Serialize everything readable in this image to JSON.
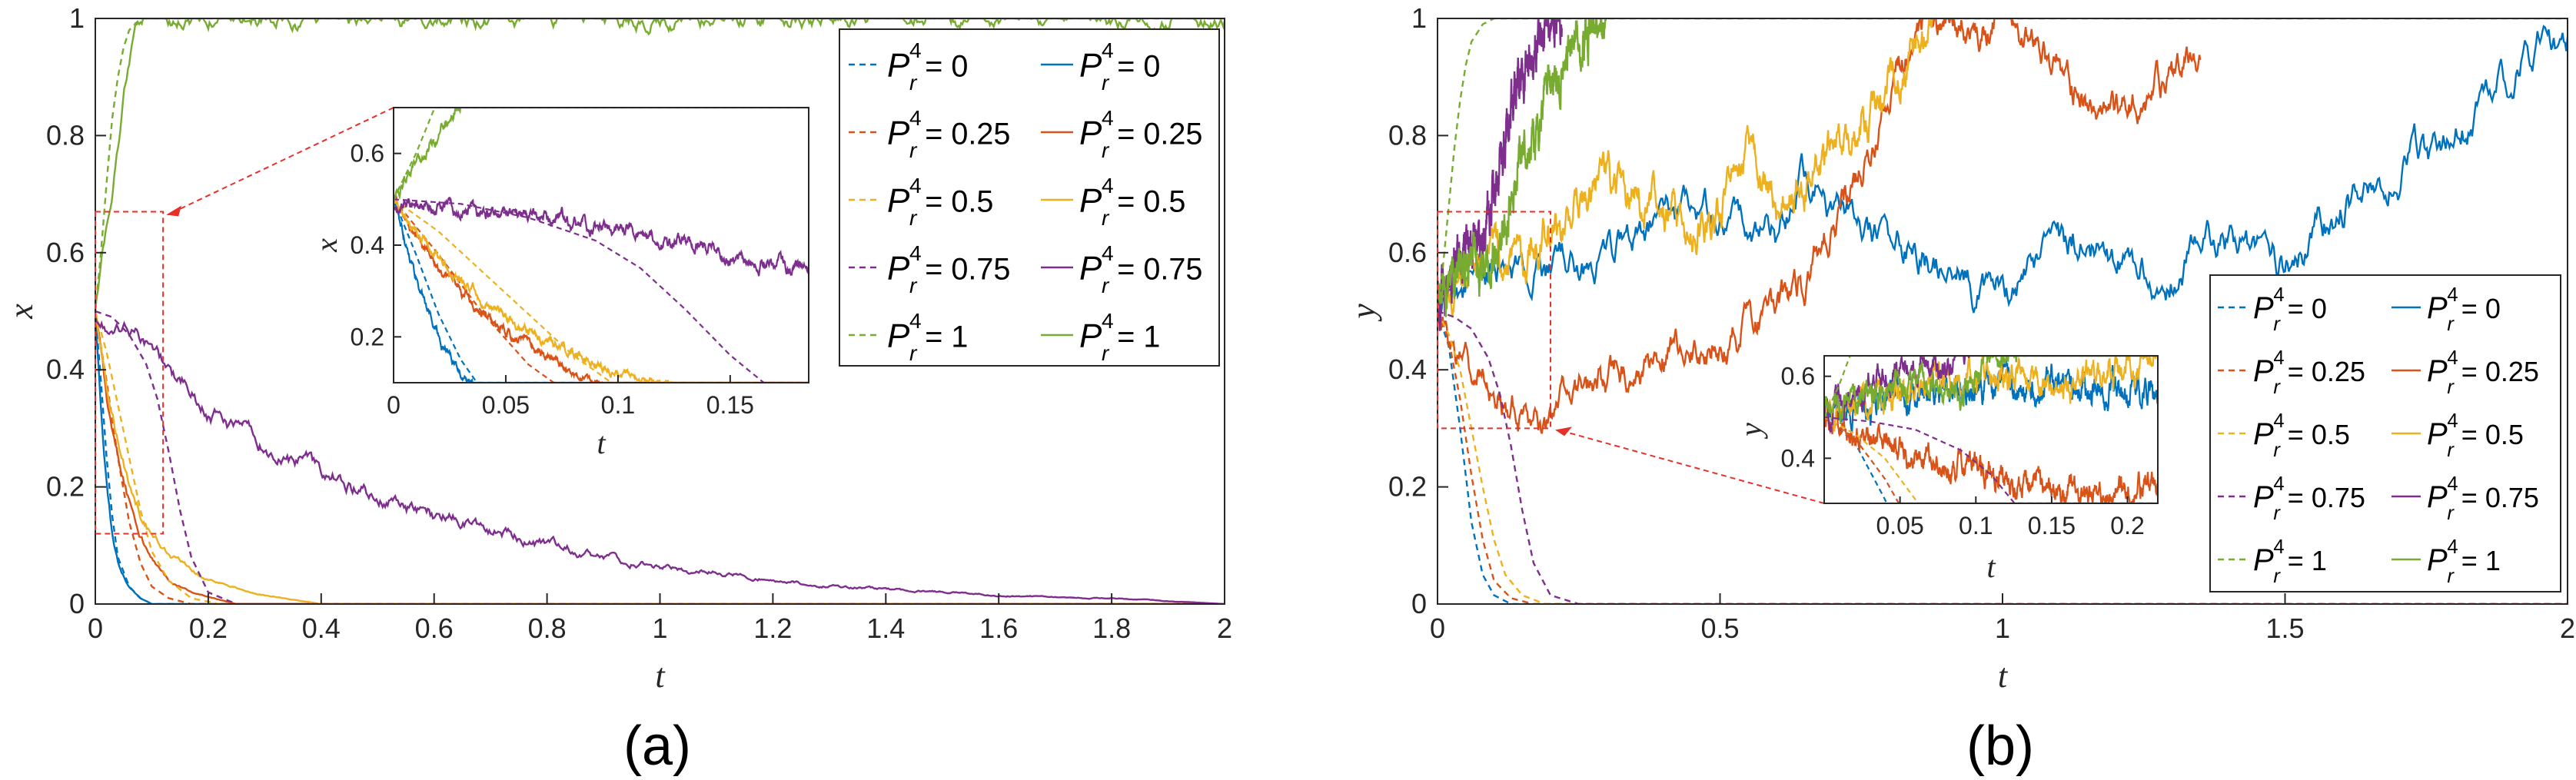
{
  "colors": {
    "pr0": "#0072BD",
    "pr025": "#D95319",
    "pr05": "#EDB120",
    "pr075": "#7E2F8E",
    "pr1": "#77AC30",
    "zoom_box": "#E8302A"
  },
  "legend_symbol": {
    "base": "P",
    "sup": "4",
    "sub": "r"
  },
  "panels": [
    {
      "label": "(a)",
      "chart_data": {
        "type": "line",
        "xlabel": "t",
        "ylabel": "x",
        "xlim": [
          0,
          2
        ],
        "ylim": [
          0,
          1
        ],
        "xticks": [
          "0",
          "0.2",
          "0.4",
          "0.6",
          "0.8",
          "1",
          "1.2",
          "1.4",
          "1.6",
          "1.8",
          "2"
        ],
        "yticks": [
          "0",
          "0.2",
          "0.4",
          "0.6",
          "0.8",
          "1"
        ],
        "legend_position": "top-right",
        "legend_entries": [
          "= 0",
          "= 0",
          "= 0.25",
          "= 0.25",
          "= 0.5",
          "= 0.5",
          "= 0.75",
          "= 0.75",
          "= 1",
          "= 1"
        ],
        "series": [
          {
            "p": 0,
            "style": "dashed",
            "t": [
              0,
              0.01,
              0.02,
              0.03,
              0.04,
              0.06,
              0.08,
              0.1,
              0.15,
              2
            ],
            "v": [
              0.5,
              0.38,
              0.25,
              0.15,
              0.08,
              0.03,
              0.01,
              0.0,
              0.0,
              0.0
            ]
          },
          {
            "p": 0,
            "style": "solid",
            "noise": 0.006,
            "t": [
              0,
              0.01,
              0.02,
              0.03,
              0.04,
              0.06,
              0.08,
              0.1,
              0.15,
              2
            ],
            "v": [
              0.5,
              0.33,
              0.2,
              0.12,
              0.07,
              0.03,
              0.01,
              0.0,
              0.0,
              0.0
            ]
          },
          {
            "p": 0.25,
            "style": "dashed",
            "t": [
              0,
              0.02,
              0.04,
              0.06,
              0.08,
              0.1,
              0.13,
              0.17,
              0.25,
              2
            ],
            "v": [
              0.5,
              0.38,
              0.25,
              0.14,
              0.07,
              0.03,
              0.01,
              0.0,
              0.0,
              0.0
            ]
          },
          {
            "p": 0.25,
            "style": "solid",
            "noise": 0.006,
            "t": [
              0,
              0.02,
              0.04,
              0.06,
              0.08,
              0.1,
              0.13,
              0.17,
              0.25,
              2
            ],
            "v": [
              0.5,
              0.35,
              0.25,
              0.18,
              0.12,
              0.08,
              0.04,
              0.02,
              0.0,
              0.0
            ]
          },
          {
            "p": 0.5,
            "style": "dashed",
            "t": [
              0,
              0.02,
              0.04,
              0.06,
              0.08,
              0.1,
              0.13,
              0.17,
              0.22,
              0.3,
              2
            ],
            "v": [
              0.5,
              0.43,
              0.34,
              0.25,
              0.16,
              0.09,
              0.04,
              0.01,
              0.0,
              0.0,
              0.0
            ]
          },
          {
            "p": 0.5,
            "style": "solid",
            "noise": 0.006,
            "t": [
              0,
              0.02,
              0.04,
              0.06,
              0.08,
              0.1,
              0.14,
              0.2,
              0.3,
              0.4,
              2
            ],
            "v": [
              0.5,
              0.37,
              0.28,
              0.21,
              0.16,
              0.12,
              0.08,
              0.04,
              0.015,
              0.0,
              0.0
            ]
          },
          {
            "p": 0.75,
            "style": "dashed",
            "t": [
              0,
              0.03,
              0.06,
              0.09,
              0.11,
              0.13,
              0.15,
              0.17,
              0.2,
              0.25,
              2
            ],
            "v": [
              0.5,
              0.49,
              0.46,
              0.41,
              0.35,
              0.26,
              0.16,
              0.08,
              0.02,
              0.0,
              0.0
            ]
          },
          {
            "p": 0.75,
            "style": "solid",
            "noise": 0.008,
            "t": [
              0,
              0.05,
              0.1,
              0.15,
              0.2,
              0.3,
              0.4,
              0.5,
              0.6,
              0.8,
              1.0,
              1.2,
              1.4,
              1.6,
              1.8,
              2.0
            ],
            "v": [
              0.49,
              0.47,
              0.44,
              0.38,
              0.33,
              0.27,
              0.23,
              0.18,
              0.15,
              0.1,
              0.065,
              0.04,
              0.025,
              0.015,
              0.01,
              0.0
            ]
          },
          {
            "p": 1,
            "style": "dashed",
            "t": [
              0,
              0.01,
              0.02,
              0.03,
              0.04,
              0.05,
              0.06,
              0.08,
              0.1,
              0.12,
              2
            ],
            "v": [
              0.5,
              0.6,
              0.72,
              0.83,
              0.9,
              0.95,
              0.98,
              1.0,
              1.0,
              1.0,
              1.0
            ]
          },
          {
            "p": 1,
            "style": "solid",
            "noise": 0.008,
            "t": [
              0,
              0.01,
              0.02,
              0.03,
              0.04,
              0.05,
              0.06,
              0.07,
              0.08,
              0.1,
              2
            ],
            "v": [
              0.5,
              0.58,
              0.64,
              0.71,
              0.78,
              0.86,
              0.93,
              0.98,
              1.0,
              1.0,
              1.0
            ]
          }
        ],
        "inset": {
          "xlabel": "t",
          "ylabel": "x",
          "xlim": [
            0,
            0.185
          ],
          "ylim": [
            0.1,
            0.7
          ],
          "xticks": [
            "0",
            "0.05",
            "0.1",
            "0.15"
          ],
          "yticks": [
            "0.2",
            "0.4",
            "0.6"
          ],
          "zoom_region": {
            "t": [
              0,
              0.12
            ],
            "v": [
              0.12,
              0.67
            ]
          }
        }
      }
    },
    {
      "label": "(b)",
      "chart_data": {
        "type": "line",
        "xlabel": "t",
        "ylabel": "y",
        "xlim": [
          0,
          2
        ],
        "ylim": [
          0,
          1
        ],
        "xticks": [
          "0",
          "0.5",
          "1",
          "1.5",
          "2"
        ],
        "yticks": [
          "0",
          "0.2",
          "0.4",
          "0.6",
          "0.8",
          "1"
        ],
        "legend_position": "bottom-right",
        "legend_entries": [
          "= 0",
          "= 0",
          "= 0.25",
          "= 0.25",
          "= 0.5",
          "= 0.5",
          "= 0.75",
          "= 0.75",
          "= 1",
          "= 1"
        ],
        "series": [
          {
            "p": 0,
            "style": "dashed",
            "t": [
              0,
              0.02,
              0.04,
              0.06,
              0.08,
              0.1,
              0.13,
              0.2,
              2
            ],
            "v": [
              0.5,
              0.44,
              0.3,
              0.14,
              0.05,
              0.015,
              0.0,
              0.0,
              0.0
            ]
          },
          {
            "p": 0,
            "style": "solid",
            "noise": 0.018,
            "t": [
              0,
              0.05,
              0.1,
              0.15,
              0.2,
              0.3,
              0.4,
              0.5,
              0.6,
              0.65,
              0.7,
              0.8,
              0.9,
              0.97,
              1.05,
              1.15,
              1.25,
              1.3,
              1.35,
              1.4,
              1.5,
              1.6,
              1.7,
              1.8,
              1.88,
              1.95,
              2.0
            ],
            "v": [
              0.5,
              0.54,
              0.57,
              0.58,
              0.56,
              0.6,
              0.64,
              0.67,
              0.62,
              0.72,
              0.67,
              0.62,
              0.58,
              0.52,
              0.56,
              0.63,
              0.58,
              0.56,
              0.6,
              0.62,
              0.58,
              0.68,
              0.74,
              0.8,
              0.88,
              0.96,
              0.98
            ]
          },
          {
            "p": 0.25,
            "style": "dashed",
            "t": [
              0,
              0.02,
              0.04,
              0.06,
              0.08,
              0.1,
              0.13,
              0.17,
              0.22,
              2
            ],
            "v": [
              0.5,
              0.45,
              0.35,
              0.22,
              0.11,
              0.04,
              0.01,
              0.0,
              0.0,
              0.0
            ]
          },
          {
            "p": 0.25,
            "style": "solid",
            "noise": 0.016,
            "t": [
              0,
              0.05,
              0.1,
              0.15,
              0.18,
              0.22,
              0.3,
              0.4,
              0.5,
              0.6,
              0.65,
              0.7,
              0.75,
              0.8,
              0.85,
              0.9,
              0.95,
              1.0,
              1.05,
              1.1,
              1.15,
              1.2,
              1.25,
              1.3,
              1.35
            ],
            "v": [
              0.5,
              0.41,
              0.37,
              0.33,
              0.3,
              0.34,
              0.38,
              0.42,
              0.45,
              0.5,
              0.55,
              0.65,
              0.75,
              0.88,
              0.97,
              1.0,
              0.98,
              1.0,
              0.96,
              0.9,
              0.86,
              0.83,
              0.88,
              0.9,
              0.94
            ]
          },
          {
            "p": 0.5,
            "style": "dashed",
            "t": [
              0,
              0.02,
              0.04,
              0.06,
              0.08,
              0.1,
              0.12,
              0.15,
              0.19,
              0.25,
              2
            ],
            "v": [
              0.5,
              0.46,
              0.4,
              0.3,
              0.2,
              0.11,
              0.05,
              0.015,
              0.0,
              0.0,
              0.0
            ]
          },
          {
            "p": 0.5,
            "style": "solid",
            "noise": 0.018,
            "t": [
              0,
              0.05,
              0.1,
              0.15,
              0.2,
              0.25,
              0.3,
              0.4,
              0.45,
              0.5,
              0.55,
              0.6,
              0.65,
              0.7,
              0.75,
              0.8,
              0.85,
              0.88
            ],
            "v": [
              0.5,
              0.56,
              0.6,
              0.58,
              0.63,
              0.68,
              0.72,
              0.68,
              0.62,
              0.66,
              0.78,
              0.68,
              0.73,
              0.78,
              0.82,
              0.9,
              0.95,
              1.0
            ]
          },
          {
            "p": 0.75,
            "style": "dashed",
            "t": [
              0,
              0.03,
              0.06,
              0.09,
              0.11,
              0.13,
              0.15,
              0.17,
              0.2,
              0.25,
              2
            ],
            "v": [
              0.5,
              0.49,
              0.47,
              0.42,
              0.36,
              0.27,
              0.16,
              0.07,
              0.015,
              0.0,
              0.0
            ]
          },
          {
            "p": 0.75,
            "style": "solid",
            "noise": 0.018,
            "t": [
              0,
              0.02,
              0.04,
              0.06,
              0.08,
              0.1,
              0.12,
              0.14,
              0.16,
              0.18,
              0.2,
              0.22
            ],
            "v": [
              0.5,
              0.55,
              0.6,
              0.64,
              0.62,
              0.7,
              0.8,
              0.88,
              0.92,
              0.97,
              1.0,
              1.0
            ]
          },
          {
            "p": 1,
            "style": "dashed",
            "t": [
              0,
              0.01,
              0.02,
              0.03,
              0.04,
              0.05,
              0.06,
              0.08,
              0.1,
              0.12,
              0.15,
              2
            ],
            "v": [
              0.5,
              0.58,
              0.68,
              0.78,
              0.86,
              0.92,
              0.96,
              0.99,
              1.0,
              1.0,
              1.0,
              1.0
            ]
          },
          {
            "p": 1,
            "style": "solid",
            "noise": 0.018,
            "t": [
              0,
              0.03,
              0.06,
              0.09,
              0.12,
              0.15,
              0.18,
              0.21,
              0.24,
              0.27,
              0.3
            ],
            "v": [
              0.5,
              0.55,
              0.6,
              0.57,
              0.66,
              0.75,
              0.82,
              0.9,
              0.95,
              0.98,
              1.0
            ]
          }
        ],
        "inset": {
          "xlabel": "t",
          "ylabel": "y",
          "xlim": [
            0,
            0.22
          ],
          "ylim": [
            0.29,
            0.65
          ],
          "xticks": [
            "0.05",
            "0.1",
            "0.15",
            "0.2"
          ],
          "yticks": [
            "0.4",
            "0.6"
          ],
          "zoom_region": {
            "t": [
              0,
              0.2
            ],
            "v": [
              0.3,
              0.67
            ]
          }
        }
      }
    }
  ]
}
